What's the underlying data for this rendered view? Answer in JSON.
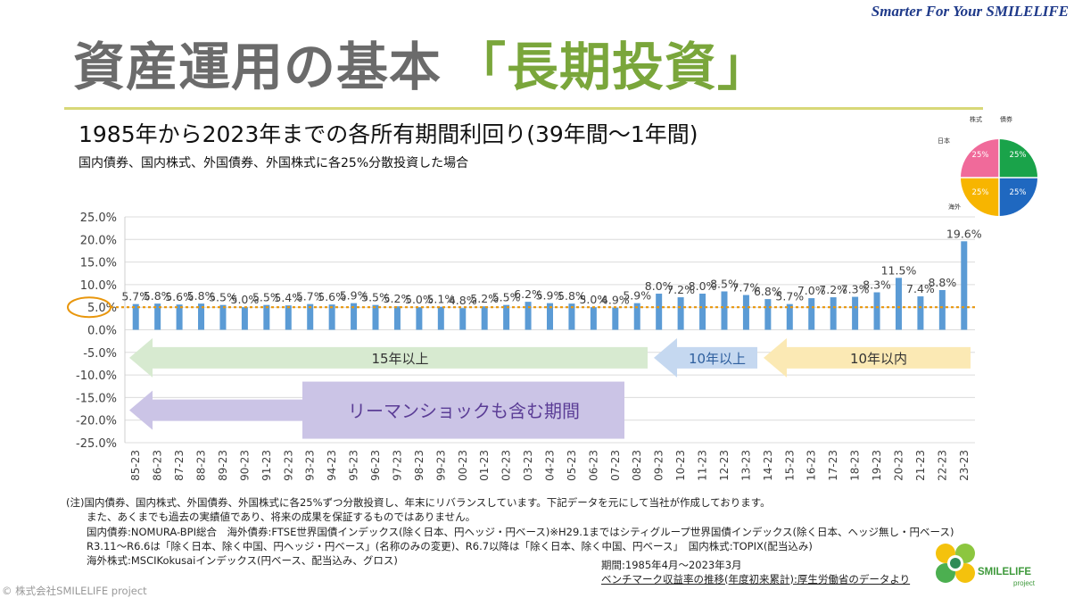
{
  "tagline": "Smarter For Your SMILELIFE",
  "title": {
    "main": "資産運用の基本",
    "highlight": "「長期投資」"
  },
  "subtitle": "1985年から2023年までの各所有期間利回り(39年間〜1年間)",
  "note": "国内債券、国内株式、外国債券、外国株式に各25%分散投資した場合",
  "allocation_pie": {
    "labels": {
      "top_left": "株式",
      "top_right": "債券",
      "left": "日本",
      "bottom_left": "海外"
    },
    "slices": [
      {
        "label": "25%",
        "color": "#1aa34a"
      },
      {
        "label": "25%",
        "color": "#1f68c0"
      },
      {
        "label": "25%",
        "color": "#f7b500"
      },
      {
        "label": "25%",
        "color": "#f06a9a"
      }
    ]
  },
  "chart_data": {
    "type": "bar",
    "categories": [
      "85-23",
      "86-23",
      "87-23",
      "88-23",
      "89-23",
      "90-23",
      "91-23",
      "92-23",
      "93-23",
      "94-23",
      "95-23",
      "96-23",
      "97-23",
      "98-23",
      "99-23",
      "00-23",
      "01-23",
      "02-23",
      "03-23",
      "04-23",
      "05-23",
      "06-23",
      "07-23",
      "08-23",
      "09-23",
      "10-23",
      "11-23",
      "12-23",
      "13-23",
      "14-23",
      "15-23",
      "16-23",
      "17-23",
      "18-23",
      "19-23",
      "20-23",
      "21-23",
      "22-23",
      "23-23"
    ],
    "values": [
      5.7,
      5.8,
      5.6,
      5.8,
      5.5,
      5.0,
      5.5,
      5.4,
      5.7,
      5.6,
      5.9,
      5.5,
      5.2,
      5.0,
      5.1,
      4.8,
      5.2,
      5.5,
      6.2,
      5.9,
      5.8,
      5.0,
      4.9,
      5.9,
      8.0,
      7.2,
      8.0,
      8.5,
      7.7,
      6.8,
      5.7,
      7.0,
      7.2,
      7.3,
      8.3,
      11.5,
      7.4,
      8.8,
      19.6
    ],
    "data_labels": [
      "5.7%",
      "5.8%",
      "5.6%",
      "5.8%",
      "5.5%",
      "5.0%",
      "5.5%",
      "5.4%",
      "5.7%",
      "5.6%",
      "5.9%",
      "5.5%",
      "5.2%",
      "5.0%",
      "5.1%",
      "4.8%",
      "5.2%",
      "5.5%",
      "6.2%",
      "5.9%",
      "5.8%",
      "5.0%",
      "4.9%",
      "5.9%",
      "8.0%",
      "7.2%",
      "8.0%",
      "8.5%",
      "7.7%",
      "6.8%",
      "5.7%",
      "7.0%",
      "7.2%",
      "7.3%",
      "8.3%",
      "11.5%",
      "7.4%",
      "8.8%",
      "19.6%"
    ],
    "ylim": [
      -25,
      25
    ],
    "yticks": [
      25,
      20,
      15,
      10,
      5,
      0,
      -5,
      -10,
      -15,
      -20,
      -25
    ],
    "ytick_labels": [
      "25.0%",
      "20.0%",
      "15.0%",
      "10.0%",
      "5.0%",
      "0.0%",
      "-5.0%",
      "-10.0%",
      "-15.0%",
      "-20.0%",
      "-25.0%"
    ],
    "reference_line": 5,
    "bar_color": "#5b9bd5",
    "reference_color": "#e8960c",
    "annotations": [
      {
        "text": "15年以上",
        "from": "85-23",
        "to": "09-23",
        "color": "#d7ead0",
        "text_color": "#333333"
      },
      {
        "text": "10年以上",
        "from": "10-23",
        "to": "14-23",
        "color": "#c5d8f0",
        "text_color": "#2e5f9e"
      },
      {
        "text": "10年以内",
        "from": "14-23",
        "to": "23-23",
        "color": "#fbe9b4",
        "text_color": "#333333"
      },
      {
        "text": "リーマンショックも含む期間",
        "from": "85-23",
        "to": "08-23",
        "color": "#cbc4e6",
        "text_color": "#5b3d96"
      }
    ]
  },
  "footnotes": [
    "(注)国内債券、国内株式、外国債券、外国株式に各25%ずつ分散投資し、年末にリバランスしています。下記データを元にして当社が作成しております。",
    "　　また、あくまでも過去の実績値であり、将来の成果を保証するものではありません。",
    "　　国内債券:NOMURA-BPI総合　海外債券:FTSE世界国債インデックス(除く日本、円ヘッジ・円ベース)※H29.1まではシティグループ世界国債インデックス(除く日本、ヘッジ無し・円ベース)",
    "　　R3.11〜R6.6は「除く日本、除く中国、円ヘッジ・円ベース」(名称のみの変更)、R6.7以降は「除く日本、除く中国、円ベース」　国内株式:TOPIX(配当込み)",
    "　　海外株式:MSCIKokusaiインデックス(円ベース、配当込み、グロス)"
  ],
  "period": {
    "line1": "期間:1985年4月〜2023年3月",
    "line2": "ベンチマーク収益率の推移(年度初来累計):厚生労働省のデータより"
  },
  "copyright": "© 株式会社SMILELIFE project",
  "logo": {
    "name": "SMILELIFE",
    "sub": "project"
  }
}
